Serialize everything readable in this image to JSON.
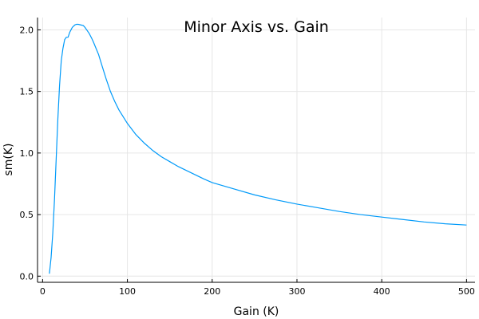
{
  "chart_data": {
    "type": "line",
    "title": "Minor Axis vs. Gain",
    "xlabel": "Gain (K)",
    "ylabel": "sm(K)",
    "xlim": [
      -6,
      510
    ],
    "ylim": [
      -0.05,
      2.1
    ],
    "xticks": [
      0,
      100,
      200,
      300,
      400,
      500
    ],
    "yticks": [
      0.0,
      0.5,
      1.0,
      1.5,
      2.0
    ],
    "xtick_labels": [
      "0",
      "100",
      "200",
      "300",
      "400",
      "500"
    ],
    "ytick_labels": [
      "0.0",
      "0.5",
      "1.0",
      "1.5",
      "2.0"
    ],
    "grid": true,
    "legend": "none",
    "series": [
      {
        "color": "#009af9",
        "x": [
          8,
          10,
          12,
          14,
          16,
          18,
          20,
          22,
          24,
          26,
          28,
          30,
          32,
          35,
          38,
          40,
          42,
          45,
          48,
          50,
          52,
          55,
          58,
          60,
          63,
          66,
          70,
          75,
          80,
          85,
          90,
          100,
          110,
          120,
          130,
          140,
          150,
          160,
          175,
          190,
          200,
          225,
          250,
          275,
          300,
          325,
          350,
          375,
          400,
          425,
          450,
          475,
          500
        ],
        "y": [
          0.02,
          0.15,
          0.35,
          0.62,
          0.95,
          1.28,
          1.55,
          1.75,
          1.85,
          1.92,
          1.94,
          1.94,
          1.98,
          2.02,
          2.04,
          2.045,
          2.045,
          2.04,
          2.035,
          2.02,
          2.0,
          1.97,
          1.93,
          1.9,
          1.85,
          1.8,
          1.71,
          1.6,
          1.5,
          1.42,
          1.35,
          1.24,
          1.15,
          1.08,
          1.02,
          0.97,
          0.93,
          0.89,
          0.84,
          0.79,
          0.76,
          0.71,
          0.66,
          0.62,
          0.585,
          0.555,
          0.525,
          0.5,
          0.48,
          0.46,
          0.44,
          0.425,
          0.415
        ]
      }
    ]
  }
}
